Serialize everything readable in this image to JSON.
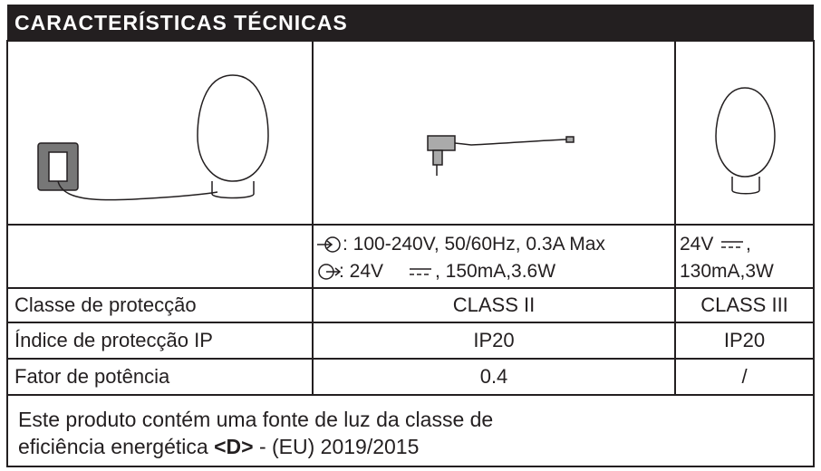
{
  "header": {
    "title": "CARACTERÍSTICAS TÉCNICAS"
  },
  "specs": {
    "adapter_input": ": 100-240V, 50/60Hz, 0.3A Max",
    "adapter_output_voltage": ": 24V",
    "adapter_output_rest": ", 150mA,3.6W",
    "lamp_voltage": "24V",
    "lamp_comma": ",",
    "lamp_rest": "130mA,3W"
  },
  "table": {
    "rows": [
      {
        "label": "Classe de protecção",
        "adapter": "CLASS II",
        "lamp": "CLASS III"
      },
      {
        "label": "Índice de protecção IP",
        "adapter": "IP20",
        "lamp": "IP20"
      },
      {
        "label": "Fator de potência",
        "adapter": "0.4",
        "lamp": "/"
      }
    ]
  },
  "footer": {
    "line1": "Este produto contém uma fonte de luz da classe de",
    "line2_start": "eficiência energética",
    "energy_class": "<D>",
    "line2_end": "- (EU) 2019/2015"
  }
}
